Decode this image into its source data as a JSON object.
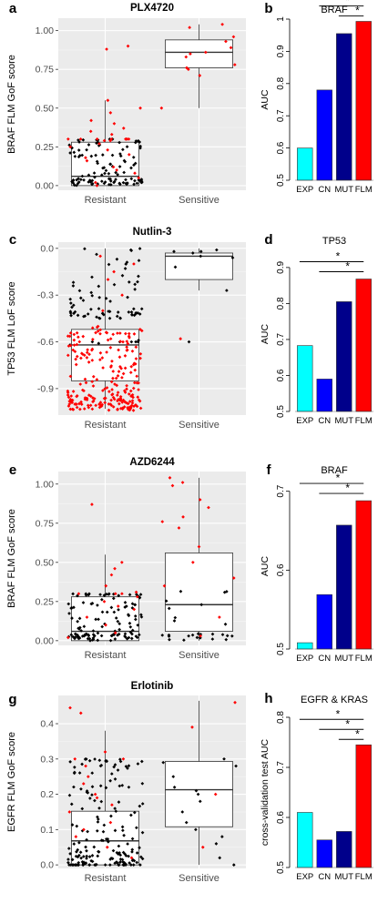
{
  "colors": {
    "panel_bg": "#ebebeb",
    "grid": "#ffffff",
    "red": "#ff0000",
    "black": "#000000",
    "exp": "#00ffff",
    "cn": "#0000ff",
    "mut": "#00008b",
    "flm": "#ff0000"
  },
  "chart_data": [
    {
      "type": "scatter",
      "panel_letter": "a",
      "title": "PLX4720",
      "ylabel": "BRAF FLM GoF score",
      "categories": [
        "Resistant",
        "Sensitive"
      ],
      "ylim": [
        -0.03,
        1.08
      ],
      "yticks": [
        0,
        0.25,
        0.5,
        0.75,
        1
      ],
      "ytick_labels": [
        "0.00",
        "0.25",
        "0.50",
        "0.75",
        "1.00"
      ],
      "boxes": [
        {
          "q1": 0,
          "median": 0.06,
          "q3": 0.28,
          "lo": 0,
          "hi": 0.55
        },
        {
          "q1": 0.76,
          "median": 0.86,
          "q3": 0.94,
          "lo": 0.5,
          "hi": 1.04
        }
      ],
      "seed": 11,
      "groups": [
        {
          "red": [
            0.9,
            0.88,
            0.55,
            0.5,
            0.47,
            0.42,
            0.4,
            0.37,
            0.35,
            0.33,
            0.3,
            0.3,
            0.29,
            0.3,
            0.3,
            0.3,
            0.3,
            0.3,
            0.3,
            0.29,
            0.27,
            0.25,
            0.23,
            0.2,
            0.18,
            0.16,
            0.12,
            0.1,
            0.08,
            0.05,
            0.02,
            0.0
          ],
          "black_n": 110,
          "black_range": [
            0,
            0.3
          ]
        },
        {
          "red": [
            1.04,
            1.02,
            0.96,
            0.93,
            0.89,
            0.86,
            0.85,
            0.83,
            0.78,
            0.76,
            0.75,
            0.71,
            0.5
          ],
          "black_n": 0,
          "black_range": [
            0,
            0
          ]
        }
      ]
    },
    {
      "type": "bar",
      "panel_letter": "b",
      "title": "BRAF",
      "ylabel": "AUC",
      "categories": [
        "EXP",
        "CN",
        "MUT",
        "FLM"
      ],
      "values": [
        0.6,
        0.78,
        0.955,
        0.993
      ],
      "ylim": [
        0.5,
        1.0
      ],
      "yticks": [
        0.5,
        0.6,
        0.7,
        0.8,
        0.9,
        1
      ],
      "ytick_labels": [
        "0.5",
        "0.6",
        "0.7",
        "0.8",
        "0.9",
        "1"
      ],
      "significance": [
        {
          "from": "EXP",
          "to": "FLM",
          "label": "*"
        },
        {
          "from": "CN",
          "to": "FLM",
          "label": "*"
        },
        {
          "from": "MUT",
          "to": "FLM",
          "label": "*"
        }
      ]
    },
    {
      "type": "scatter",
      "panel_letter": "c",
      "title": "Nutlin-3",
      "ylabel": "TP53 FLM LoF score",
      "categories": [
        "Resistant",
        "Sensitive"
      ],
      "ylim": [
        -1.07,
        0.04
      ],
      "yticks": [
        0,
        -0.3,
        -0.6,
        -0.9
      ],
      "ytick_labels": [
        "0.0",
        "-0.3",
        "-0.6",
        "-0.9"
      ],
      "boxes": [
        {
          "q1": -0.85,
          "median": -0.62,
          "q3": -0.52,
          "lo": -1.03,
          "hi": 0
        },
        {
          "q1": -0.2,
          "median": -0.05,
          "q3": -0.03,
          "lo": -0.27,
          "hi": 0
        }
      ],
      "seed": 23,
      "groups": [
        {
          "red_n": 230,
          "red_range": [
            -1.04,
            -0.5
          ],
          "red_extra": [
            -0.05,
            -0.1,
            -0.2,
            -0.3,
            -0.4,
            -0.15
          ],
          "black_n": 70,
          "black_range": [
            -0.45,
            0
          ],
          "black_extra": [
            -0.6,
            -0.61,
            -0.6,
            -0.59,
            -0.6,
            -0.62,
            -0.6,
            -0.6
          ]
        },
        {
          "red": [
            -0.58
          ],
          "black": [
            -0.01,
            -0.02,
            -0.02,
            -0.03,
            -0.05,
            -0.06,
            -0.12,
            -0.27,
            -0.6
          ]
        }
      ]
    },
    {
      "type": "bar",
      "panel_letter": "d",
      "title": "TP53",
      "ylabel": "AUC",
      "categories": [
        "EXP",
        "CN",
        "MUT",
        "FLM"
      ],
      "values": [
        0.683,
        0.59,
        0.805,
        0.868
      ],
      "ylim": [
        0.5,
        0.93
      ],
      "yticks": [
        0.5,
        0.6,
        0.7,
        0.8,
        0.9
      ],
      "ytick_labels": [
        "0.5",
        "0.6",
        "0.7",
        "0.8",
        "0.9"
      ],
      "significance": [
        {
          "from": "EXP",
          "to": "FLM",
          "label": "*"
        },
        {
          "from": "CN",
          "to": "FLM",
          "label": "*"
        }
      ]
    },
    {
      "type": "scatter",
      "panel_letter": "e",
      "title": "AZD6244",
      "ylabel": "BRAF FLM GoF score",
      "categories": [
        "Resistant",
        "Sensitive"
      ],
      "ylim": [
        -0.03,
        1.08
      ],
      "yticks": [
        0,
        0.25,
        0.5,
        0.75,
        1
      ],
      "ytick_labels": [
        "0.00",
        "0.25",
        "0.50",
        "0.75",
        "1.00"
      ],
      "boxes": [
        {
          "q1": 0,
          "median": 0.06,
          "q3": 0.28,
          "lo": 0,
          "hi": 0.55
        },
        {
          "q1": 0.06,
          "median": 0.23,
          "q3": 0.56,
          "lo": 0,
          "hi": 1.04
        }
      ],
      "seed": 37,
      "groups": [
        {
          "red": [
            0.87,
            0.5,
            0.46,
            0.42,
            0.35,
            0.31,
            0.3,
            0.3,
            0.3,
            0.28,
            0.25,
            0.22,
            0.2,
            0.15,
            0.1,
            0.05,
            0.02
          ],
          "black_n": 120,
          "black_range": [
            0,
            0.3
          ]
        },
        {
          "red": [
            1.04,
            1.01,
            0.99,
            0.9,
            0.85,
            0.79,
            0.76,
            0.72,
            0.6,
            0.5,
            0.4,
            0.35,
            0.15,
            0.03
          ],
          "black_n": 26,
          "black_range": [
            0,
            0.32
          ]
        }
      ]
    },
    {
      "type": "bar",
      "panel_letter": "f",
      "title": "BRAF",
      "ylabel": "AUC",
      "categories": [
        "EXP",
        "CN",
        "MUT",
        "FLM"
      ],
      "values": [
        0.508,
        0.569,
        0.657,
        0.688
      ],
      "ylim": [
        0.5,
        0.71
      ],
      "yticks": [
        0.5,
        0.6,
        0.7
      ],
      "ytick_labels": [
        "0.5",
        "0.6",
        "0.7"
      ],
      "significance": [
        {
          "from": "EXP",
          "to": "FLM",
          "label": "*"
        },
        {
          "from": "CN",
          "to": "FLM",
          "label": "*"
        }
      ]
    },
    {
      "type": "scatter",
      "panel_letter": "g",
      "title": "Erlotinib",
      "ylabel": "EGFR FLM GoF score",
      "categories": [
        "Resistant",
        "Sensitive"
      ],
      "ylim": [
        -0.01,
        0.48
      ],
      "yticks": [
        0,
        0.1,
        0.2,
        0.3,
        0.4
      ],
      "ytick_labels": [
        "0.0",
        "0.1",
        "0.2",
        "0.3",
        "0.4"
      ],
      "boxes": [
        {
          "q1": 0,
          "median": 0.068,
          "q3": 0.152,
          "lo": 0,
          "hi": 0.38
        },
        {
          "q1": 0.108,
          "median": 0.213,
          "q3": 0.293,
          "lo": 0,
          "hi": 0.465
        }
      ],
      "seed": 53,
      "groups": [
        {
          "red": [
            0.445,
            0.43,
            0.32,
            0.3,
            0.3,
            0.28,
            0.25,
            0.23,
            0.2,
            0.19,
            0.17,
            0.15,
            0.12,
            0.1,
            0.08,
            0.05,
            0.02
          ],
          "black_n": 150,
          "black_range": [
            0,
            0.3
          ],
          "black_zero": 28
        },
        {
          "red": [
            0.46,
            0.39,
            0.2,
            0.05
          ],
          "black": [
            0.3,
            0.29,
            0.28,
            0.25,
            0.22,
            0.21,
            0.2,
            0.18,
            0.15,
            0.12,
            0.1,
            0.08,
            0.06,
            0.02,
            0.0
          ]
        }
      ]
    },
    {
      "type": "bar",
      "panel_letter": "h",
      "title": "EGFR & KRAS",
      "ylabel": "cross-validation test AUC",
      "categories": [
        "EXP",
        "CN",
        "MUT",
        "FLM"
      ],
      "values": [
        0.61,
        0.555,
        0.572,
        0.745
      ],
      "ylim": [
        0.5,
        0.8
      ],
      "yticks": [
        0.5,
        0.6,
        0.7,
        0.8
      ],
      "ytick_labels": [
        "0.5",
        "0.6",
        "0.7",
        "0.8"
      ],
      "significance": [
        {
          "from": "EXP",
          "to": "FLM",
          "label": "*"
        },
        {
          "from": "CN",
          "to": "FLM",
          "label": "*"
        },
        {
          "from": "MUT",
          "to": "FLM",
          "label": "*"
        }
      ]
    }
  ]
}
